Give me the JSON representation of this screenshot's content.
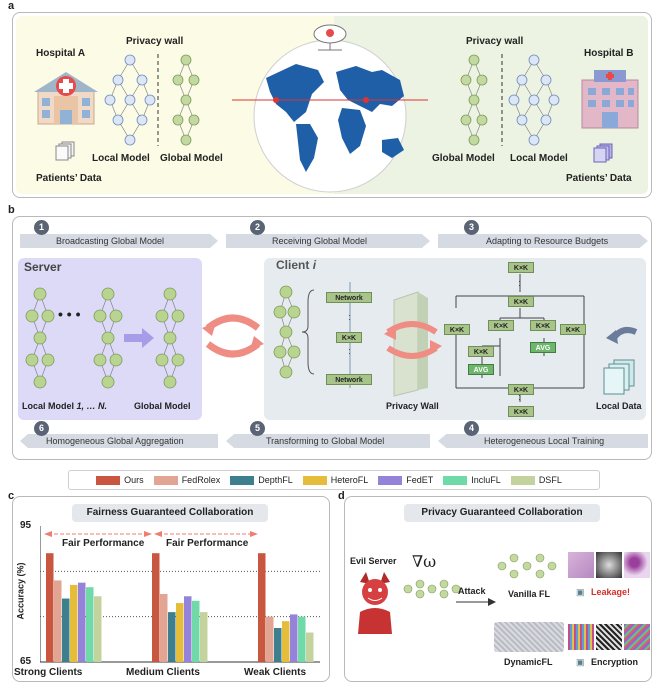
{
  "panel_a": {
    "letter": "a",
    "hospital_a": "Hospital A",
    "hospital_b": "Hospital B",
    "privacy_wall_left": "Privacy wall",
    "privacy_wall_right": "Privacy wall",
    "local_model_left": "Local Model",
    "global_model_left": "Global Model",
    "global_model_right": "Global Model",
    "local_model_right": "Local Model",
    "patients_data_left": "Patients’ Data",
    "patients_data_right": "Patients’ Data",
    "colors": {
      "left_bg": "#fbfbe6",
      "right_bg": "#edf3e2",
      "map": "#1f5fa8"
    }
  },
  "panel_b": {
    "letter": "b",
    "steps": [
      {
        "num": "1",
        "label": "Broadcasting Global Model"
      },
      {
        "num": "2",
        "label": "Receiving Global Model"
      },
      {
        "num": "3",
        "label": "Adapting to Resource Budgets"
      },
      {
        "num": "4",
        "label": "Heterogeneous Local Training"
      },
      {
        "num": "5",
        "label": "Transforming to Global Model"
      },
      {
        "num": "6",
        "label": "Homogeneous Global Aggregation"
      }
    ],
    "server_title": "Server",
    "client_title": "Client",
    "client_index": "i",
    "local_models_label": "Local Model",
    "local_models_index": "1, … N.",
    "global_model_label": "Global Model",
    "network_top": "Network",
    "network_bottom": "Network",
    "kk": "K×K",
    "avg": "AVG",
    "privacy_wall": "Privacy Wall",
    "local_data": "Local Data",
    "dots": "• • •",
    "colors": {
      "server_bg": "#dcdaf7",
      "client_bg": "#e6ebef",
      "node": "#b8d490",
      "arrow": "#ef8c84"
    }
  },
  "legend": [
    {
      "name": "Ours",
      "color": "#c9573f"
    },
    {
      "name": "FedRolex",
      "color": "#e3a593"
    },
    {
      "name": "DepthFL",
      "color": "#3e7f8e"
    },
    {
      "name": "HeteroFL",
      "color": "#e5bd3a"
    },
    {
      "name": "FedET",
      "color": "#9483d8"
    },
    {
      "name": "IncluFL",
      "color": "#6fd9a8"
    },
    {
      "name": "DSFL",
      "color": "#c4d39d"
    }
  ],
  "panel_c": {
    "letter": "c",
    "title": "Fairness Guaranteed Collaboration",
    "fair_label_1": "Fair Performance",
    "fair_label_2": "Fair Performance"
  },
  "chart_data": {
    "type": "bar",
    "title": "Fairness Guaranteed Collaboration",
    "ylabel": "Accuracy (%)",
    "xlabel": "",
    "ylim": [
      65,
      95
    ],
    "yticks": [
      "65",
      "95"
    ],
    "categories": [
      "Strong Clients",
      "Medium Clients",
      "Weak Clients"
    ],
    "series": [
      {
        "name": "Ours",
        "values": [
          89,
          89,
          89
        ]
      },
      {
        "name": "FedRolex",
        "values": [
          83,
          80,
          75
        ]
      },
      {
        "name": "DepthFL",
        "values": [
          79,
          76,
          72.5
        ]
      },
      {
        "name": "HeteroFL",
        "values": [
          82,
          78,
          74
        ]
      },
      {
        "name": "FedET",
        "values": [
          82.5,
          79.5,
          75.5
        ]
      },
      {
        "name": "IncluFL",
        "values": [
          81.5,
          78.5,
          75
        ]
      },
      {
        "name": "DSFL",
        "values": [
          79.5,
          76,
          71.5
        ]
      }
    ],
    "reference_lines": [
      85,
      75
    ]
  },
  "panel_d": {
    "letter": "d",
    "title": "Privacy Guaranteed Collaboration",
    "evil_server": "Evil  Server",
    "gradient": "∇ω",
    "attack": "Attack",
    "vanilla": "Vanilla FL",
    "leakage": "Leakage!",
    "dynamic": "DynamicFL",
    "encryption": "Encryption",
    "leak_color": "#d0302b"
  }
}
